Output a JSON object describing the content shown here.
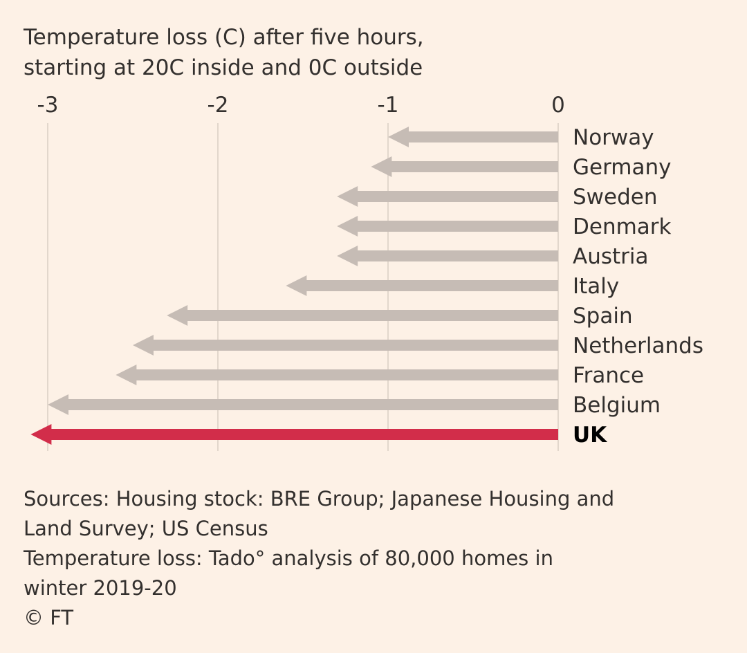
{
  "title_line1": "Temperature loss (C) after five hours,",
  "title_line2": "starting at 20C inside and 0C outside",
  "chart_data": {
    "type": "bar",
    "orientation": "horizontal",
    "style": "arrow",
    "title": "Temperature loss (C) after five hours, starting at 20C inside and 0C outside",
    "xlabel": "",
    "ylabel": "",
    "xlim": [
      -3,
      0
    ],
    "x_ticks": [
      -3,
      -2,
      -1,
      0
    ],
    "x_tick_labels": [
      "-3",
      "-2",
      "-1",
      "0"
    ],
    "grid": true,
    "categories": [
      "Norway",
      "Germany",
      "Sweden",
      "Denmark",
      "Austria",
      "Italy",
      "Spain",
      "Netherlands",
      "France",
      "Belgium",
      "UK"
    ],
    "values": [
      -1.0,
      -1.1,
      -1.3,
      -1.3,
      -1.3,
      -1.6,
      -2.3,
      -2.5,
      -2.6,
      -3.0,
      -3.1
    ],
    "highlight": "UK",
    "colors": {
      "default": "#c6bcb5",
      "highlight": "#d22d4a"
    }
  },
  "sources": [
    "Sources: Housing stock: BRE Group; Japanese Housing and",
    "Land Survey; US Census",
    "Temperature loss: Tado° analysis of 80,000 homes in",
    "winter 2019-20"
  ],
  "credit": "© FT"
}
